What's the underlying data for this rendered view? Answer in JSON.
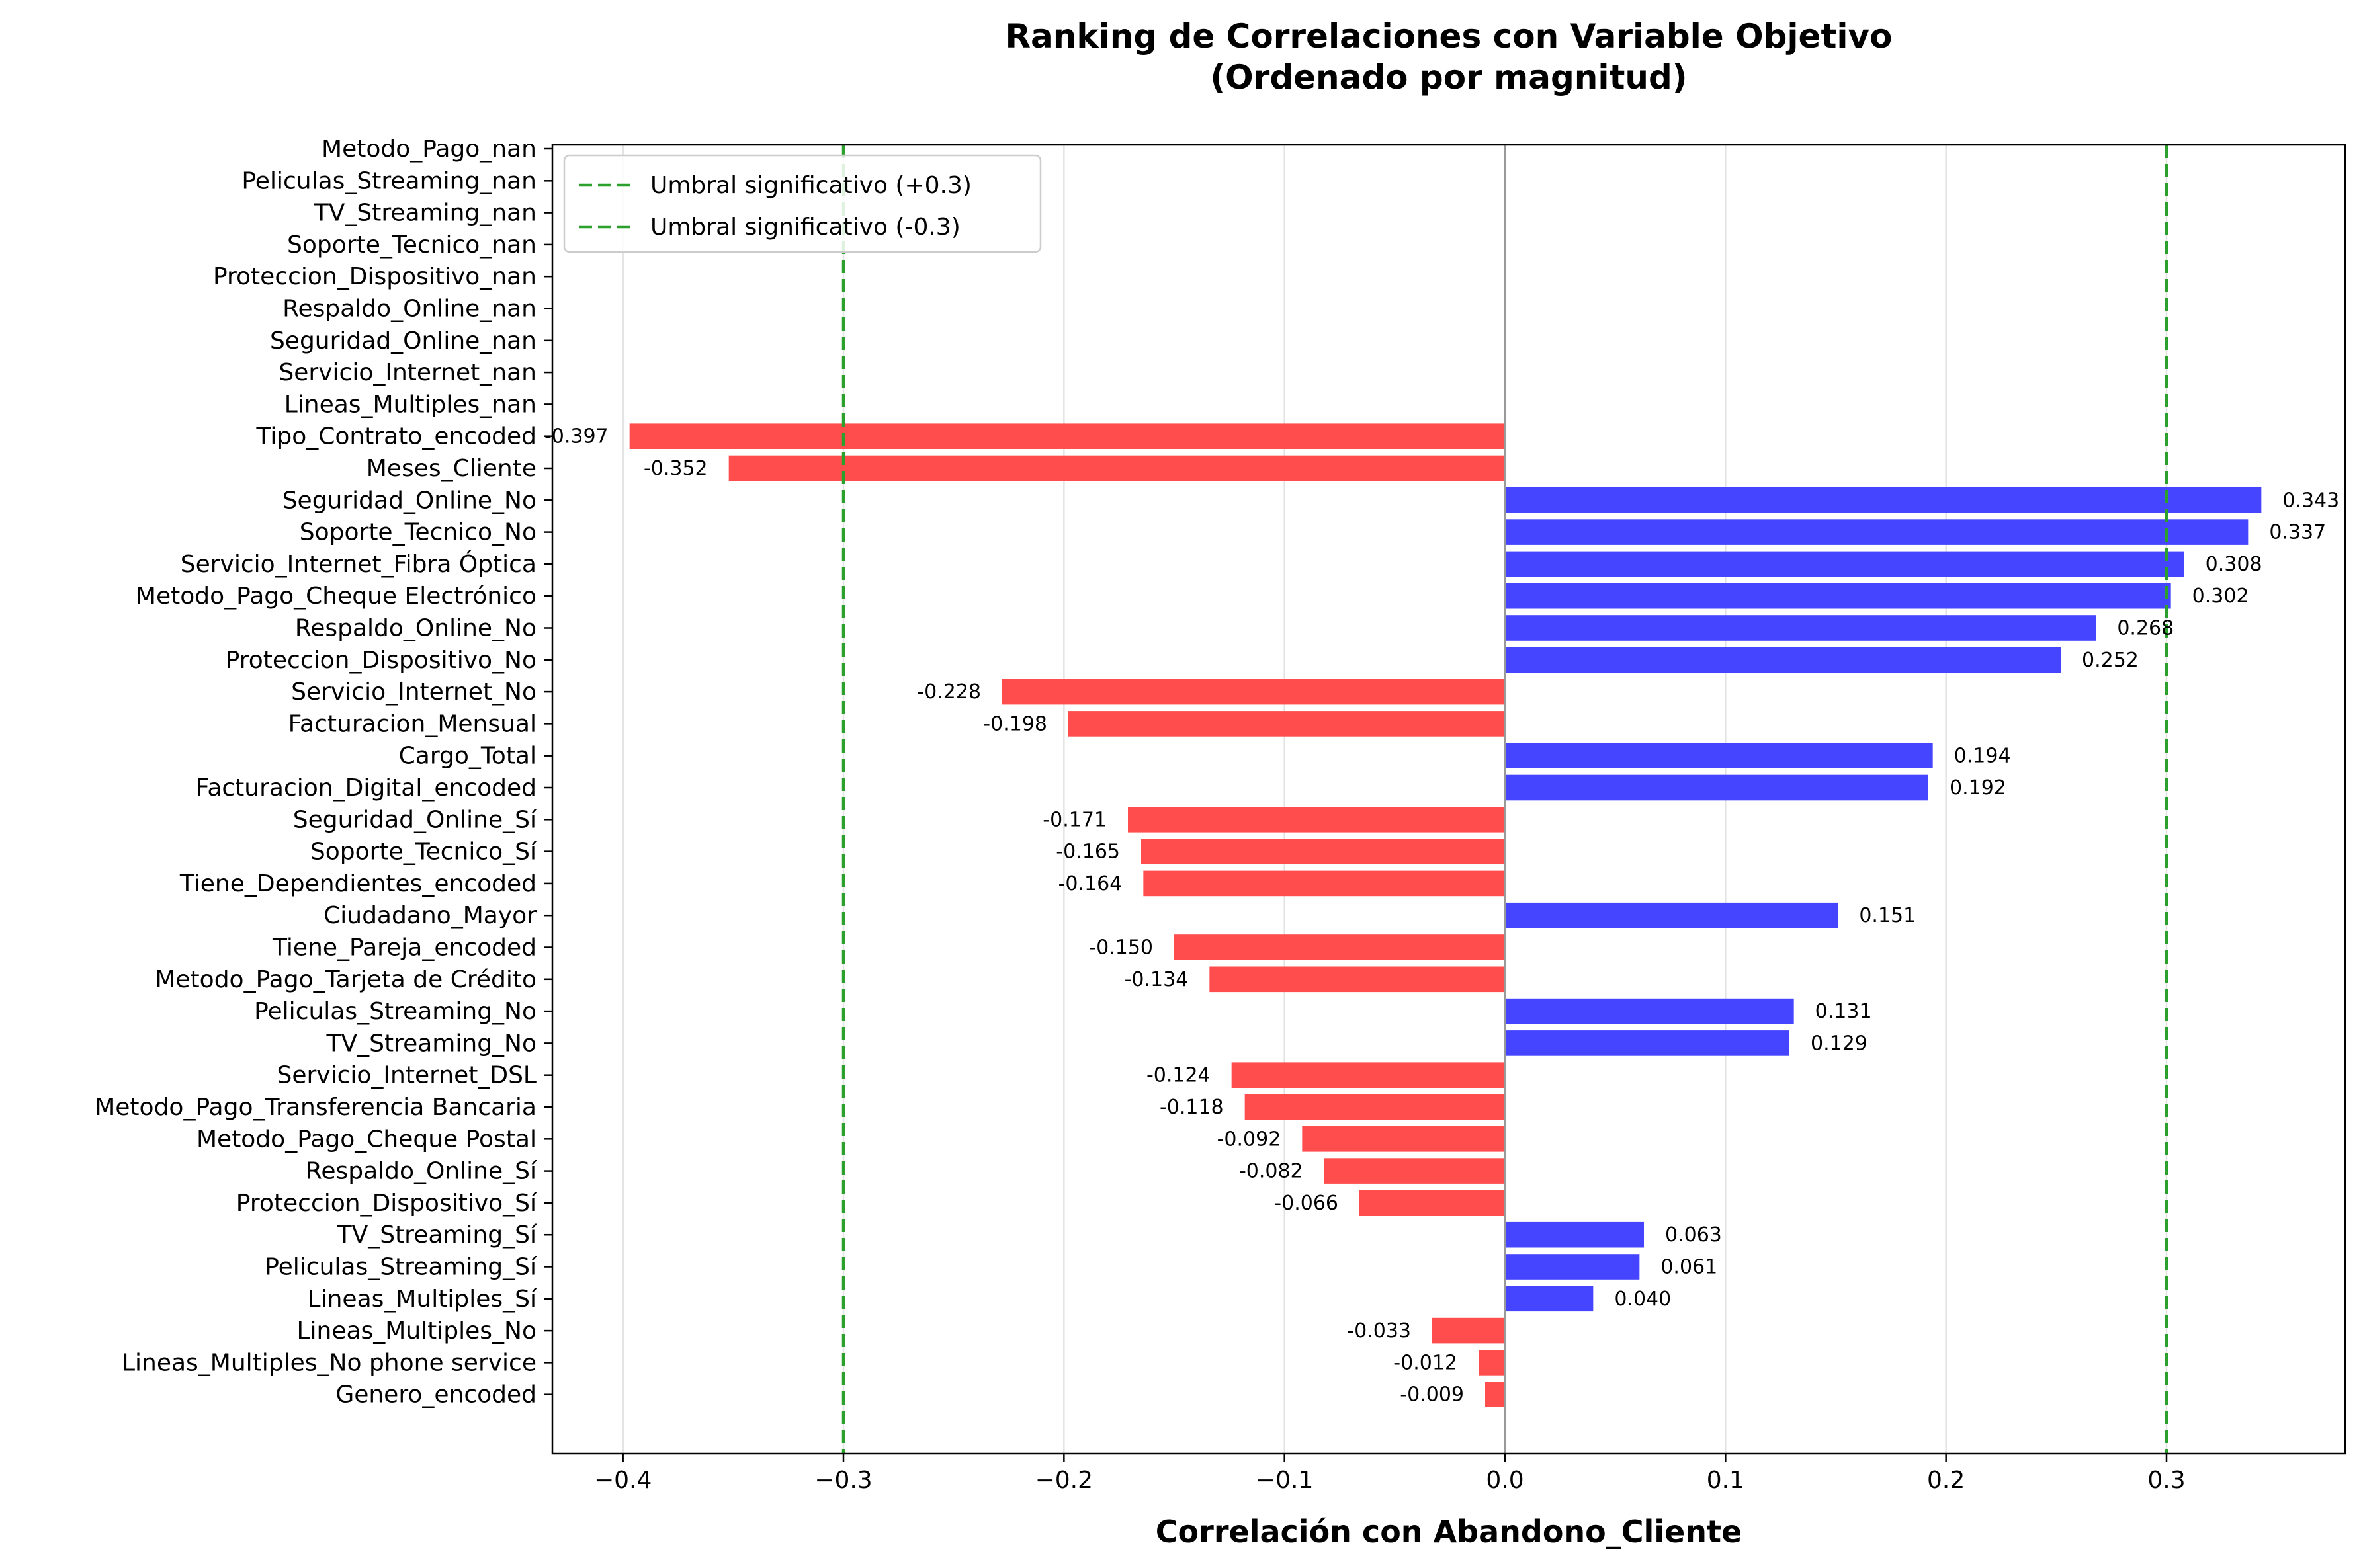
{
  "chart_data": {
    "type": "bar",
    "orientation": "horizontal",
    "title": "Ranking de Correlaciones con Variable Objetivo\n(Ordenado por magnitud)",
    "xlabel": "Correlación con Abandono_Cliente",
    "ylabel": "",
    "xlim": [
      -0.432,
      0.381
    ],
    "xticks": [
      -0.4,
      -0.3,
      -0.2,
      -0.1,
      0.0,
      0.1,
      0.2,
      0.3
    ],
    "xtick_labels": [
      "−0.4",
      "−0.3",
      "−0.2",
      "−0.1",
      "0.0",
      "0.1",
      "0.2",
      "0.3"
    ],
    "grid": "x",
    "legend_position": "top-left",
    "colors": {
      "positive": "#4545ff",
      "negative": "#ff4d4d",
      "threshold": "#2ca02c",
      "zero_line": "#999999"
    },
    "thresholds": [
      {
        "label": "Umbral significativo (+0.3)",
        "value": 0.3
      },
      {
        "label": "Umbral significativo (-0.3)",
        "value": -0.3
      }
    ],
    "categories": [
      "Metodo_Pago_nan",
      "Peliculas_Streaming_nan",
      "TV_Streaming_nan",
      "Soporte_Tecnico_nan",
      "Proteccion_Dispositivo_nan",
      "Respaldo_Online_nan",
      "Seguridad_Online_nan",
      "Servicio_Internet_nan",
      "Lineas_Multiples_nan",
      "Tipo_Contrato_encoded",
      "Meses_Cliente",
      "Seguridad_Online_No",
      "Soporte_Tecnico_No",
      "Servicio_Internet_Fibra Óptica",
      "Metodo_Pago_Cheque Electrónico",
      "Respaldo_Online_No",
      "Proteccion_Dispositivo_No",
      "Servicio_Internet_No",
      "Facturacion_Mensual",
      "Cargo_Total",
      "Facturacion_Digital_encoded",
      "Seguridad_Online_Sí",
      "Soporte_Tecnico_Sí",
      "Tiene_Dependientes_encoded",
      "Ciudadano_Mayor",
      "Tiene_Pareja_encoded",
      "Metodo_Pago_Tarjeta de Crédito",
      "Peliculas_Streaming_No",
      "TV_Streaming_No",
      "Servicio_Internet_DSL",
      "Metodo_Pago_Transferencia Bancaria",
      "Metodo_Pago_Cheque Postal",
      "Respaldo_Online_Sí",
      "Proteccion_Dispositivo_Sí",
      "TV_Streaming_Sí",
      "Peliculas_Streaming_Sí",
      "Lineas_Multiples_Sí",
      "Lineas_Multiples_No",
      "Lineas_Multiples_No phone service",
      "Genero_encoded"
    ],
    "values": [
      null,
      null,
      null,
      null,
      null,
      null,
      null,
      null,
      null,
      -0.397,
      -0.352,
      0.343,
      0.337,
      0.308,
      0.302,
      0.268,
      0.252,
      -0.228,
      -0.198,
      0.194,
      0.192,
      -0.171,
      -0.165,
      -0.164,
      0.151,
      -0.15,
      -0.134,
      0.131,
      0.129,
      -0.124,
      -0.118,
      -0.092,
      -0.082,
      -0.066,
      0.063,
      0.061,
      0.04,
      -0.033,
      -0.012,
      -0.009
    ],
    "value_labels": [
      "",
      "",
      "",
      "",
      "",
      "",
      "",
      "",
      "",
      "-0.397",
      "-0.352",
      "0.343",
      "0.337",
      "0.308",
      "0.302",
      "0.268",
      "0.252",
      "-0.228",
      "-0.198",
      "0.194",
      "0.192",
      "-0.171",
      "-0.165",
      "-0.164",
      "0.151",
      "-0.150",
      "-0.134",
      "0.131",
      "0.129",
      "-0.124",
      "-0.118",
      "-0.092",
      "-0.082",
      "-0.066",
      "0.063",
      "0.061",
      "0.040",
      "-0.033",
      "-0.012",
      "-0.009"
    ]
  }
}
